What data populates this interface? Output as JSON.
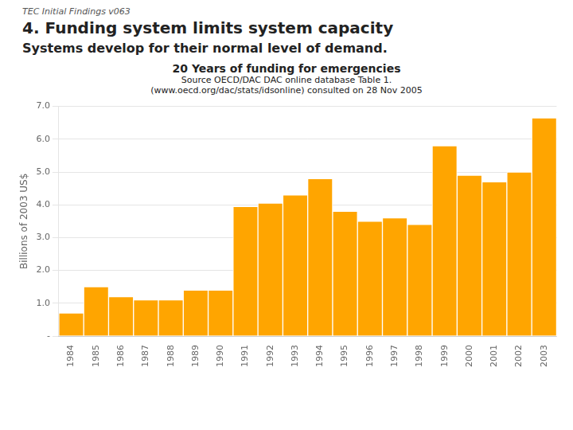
{
  "chart_data": {
    "type": "bar",
    "title": "4. Funding system limits system capacity",
    "subtitle": "Systems develop for their normal level of demand.",
    "annotations": [
      "TEC Initial Findings v063",
      "20 Years of funding for emergencies",
      "Source OECD/DAC DAC online database Table 1.",
      "(www.oecd.org/dac/stats/idsonline) consulted on 28 Nov 2005"
    ],
    "ylabel": "Billions of 2003 US$",
    "categories": [
      "1984",
      "1985",
      "1986",
      "1987",
      "1988",
      "1989",
      "1990",
      "1991",
      "1992",
      "1993",
      "1994",
      "1995",
      "1996",
      "1997",
      "1998",
      "1999",
      "2000",
      "2001",
      "2002",
      "2003"
    ],
    "values": [
      0.7,
      1.5,
      1.2,
      1.1,
      1.1,
      1.4,
      1.4,
      3.95,
      4.05,
      4.3,
      4.8,
      3.8,
      3.5,
      3.6,
      3.4,
      5.8,
      4.9,
      4.7,
      5.0,
      6.65
    ],
    "color": "#FFA500",
    "ylim": [
      0,
      7.0
    ],
    "yticks": [
      {
        "value": 0,
        "label": "-"
      },
      {
        "value": 1.0,
        "label": "1.0"
      },
      {
        "value": 2.0,
        "label": "2.0"
      },
      {
        "value": 3.0,
        "label": "3.0"
      },
      {
        "value": 4.0,
        "label": "4.0"
      },
      {
        "value": 5.0,
        "label": "5.0"
      },
      {
        "value": 6.0,
        "label": "6.0"
      },
      {
        "value": 7.0,
        "label": "7.0"
      }
    ],
    "grid": true
  }
}
